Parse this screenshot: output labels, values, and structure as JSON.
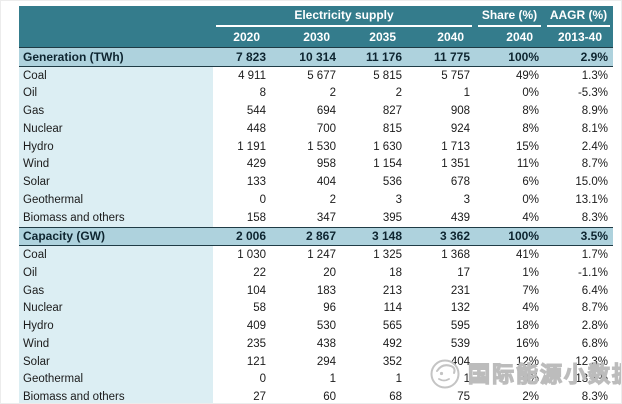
{
  "chart_data": {
    "type": "table",
    "header": {
      "group_electricity": "Electricity supply",
      "group_share": "Share (%)",
      "group_aagr": "AAGR (%)",
      "years": [
        "2020",
        "2030",
        "2035",
        "2040"
      ],
      "share_year": "2040",
      "aagr_period": "2013-40"
    },
    "rows": [
      {
        "label": "Generation (TWh)",
        "type": "section",
        "values": [
          "7 823",
          "10 314",
          "11 176",
          "11 775",
          "100%",
          "2.9%"
        ]
      },
      {
        "label": "Coal",
        "type": "data",
        "values": [
          "4 911",
          "5 677",
          "5 815",
          "5 757",
          "49%",
          "1.3%"
        ]
      },
      {
        "label": "Oil",
        "type": "data",
        "values": [
          "8",
          "2",
          "2",
          "1",
          "0%",
          "-5.3%"
        ]
      },
      {
        "label": "Gas",
        "type": "data",
        "values": [
          "544",
          "694",
          "827",
          "908",
          "8%",
          "8.9%"
        ]
      },
      {
        "label": "Nuclear",
        "type": "data",
        "values": [
          "448",
          "700",
          "815",
          "924",
          "8%",
          "8.1%"
        ]
      },
      {
        "label": "Hydro",
        "type": "data",
        "values": [
          "1 191",
          "1 530",
          "1 630",
          "1 713",
          "15%",
          "2.4%"
        ]
      },
      {
        "label": "Wind",
        "type": "data",
        "values": [
          "429",
          "958",
          "1 154",
          "1 351",
          "11%",
          "8.7%"
        ]
      },
      {
        "label": "Solar",
        "type": "data",
        "values": [
          "133",
          "404",
          "536",
          "678",
          "6%",
          "15.0%"
        ]
      },
      {
        "label": "Geothermal",
        "type": "data",
        "values": [
          "0",
          "2",
          "3",
          "3",
          "0%",
          "13.1%"
        ]
      },
      {
        "label": "Biomass and others",
        "type": "data",
        "values": [
          "158",
          "347",
          "395",
          "439",
          "4%",
          "8.3%"
        ]
      },
      {
        "label": "Capacity (GW)",
        "type": "section",
        "values": [
          "2 006",
          "2 867",
          "3 148",
          "3 362",
          "100%",
          "3.5%"
        ]
      },
      {
        "label": "Coal",
        "type": "data",
        "values": [
          "1 030",
          "1 247",
          "1 325",
          "1 368",
          "41%",
          "1.7%"
        ]
      },
      {
        "label": "Oil",
        "type": "data",
        "values": [
          "22",
          "20",
          "18",
          "17",
          "1%",
          "-1.1%"
        ]
      },
      {
        "label": "Gas",
        "type": "data",
        "values": [
          "104",
          "183",
          "213",
          "231",
          "7%",
          "6.4%"
        ]
      },
      {
        "label": "Nuclear",
        "type": "data",
        "values": [
          "58",
          "96",
          "114",
          "132",
          "4%",
          "8.7%"
        ]
      },
      {
        "label": "Hydro",
        "type": "data",
        "values": [
          "409",
          "530",
          "565",
          "595",
          "18%",
          "2.8%"
        ]
      },
      {
        "label": "Wind",
        "type": "data",
        "values": [
          "235",
          "438",
          "492",
          "539",
          "16%",
          "6.8%"
        ]
      },
      {
        "label": "Solar",
        "type": "data",
        "values": [
          "121",
          "294",
          "352",
          "404",
          "12%",
          "12.3%"
        ]
      },
      {
        "label": "Geothermal",
        "type": "data",
        "values": [
          "0",
          "1",
          "1",
          "1",
          "0%",
          "13.1%"
        ]
      },
      {
        "label": "Biomass and others",
        "type": "data",
        "values": [
          "27",
          "60",
          "68",
          "75",
          "2%",
          "8.3%"
        ]
      }
    ]
  },
  "watermark": {
    "text": "国际能源小数据"
  },
  "colors": {
    "header_teal": "#347C8C",
    "section_row_bg": "#AED2DD",
    "label_column_bg": "#DCEEF3",
    "dark_border": "#1F3B45",
    "watermark_gray": "#BCBCBC"
  }
}
